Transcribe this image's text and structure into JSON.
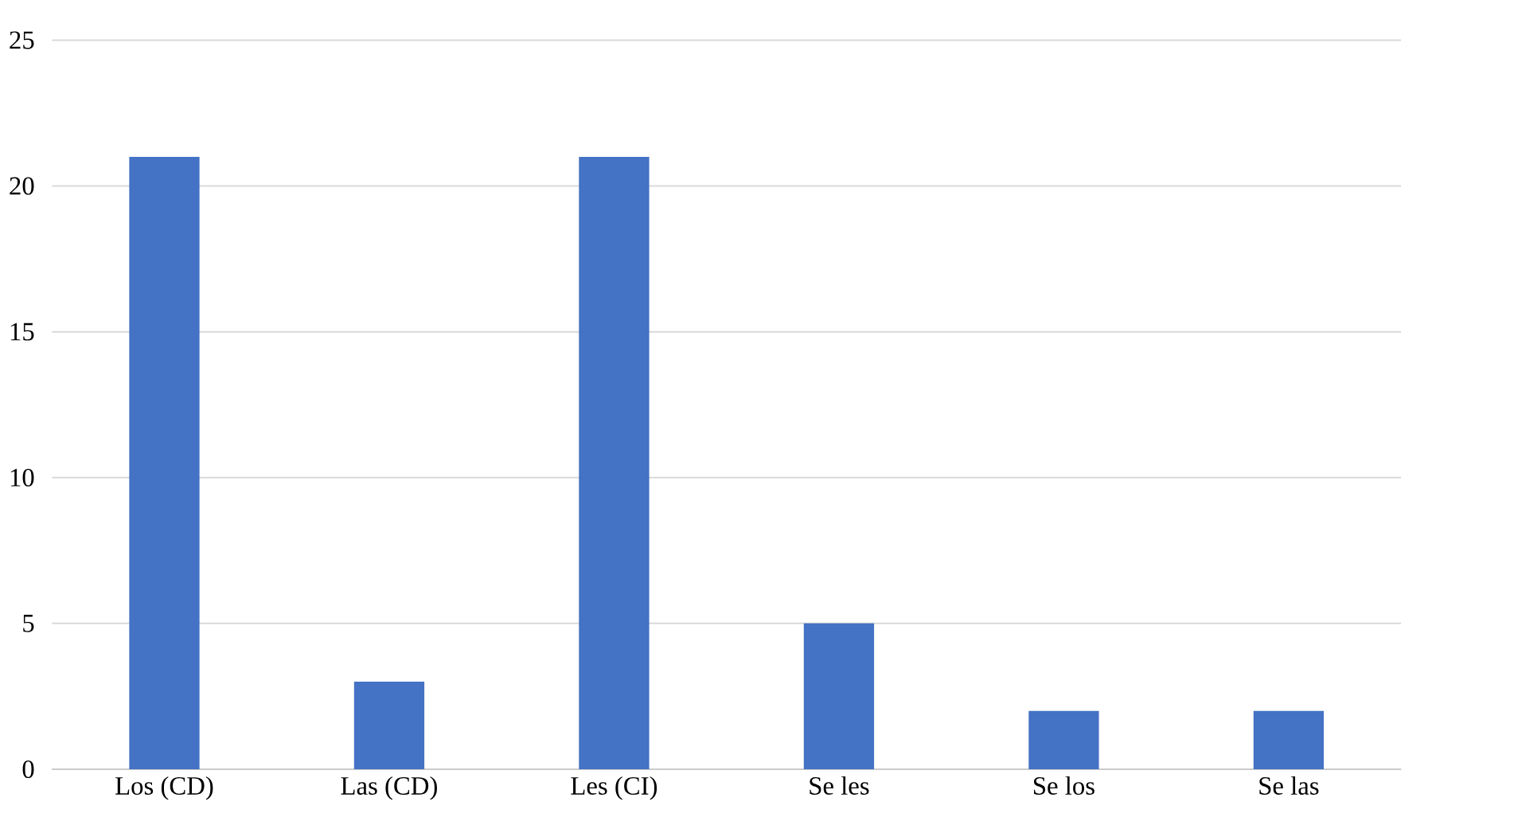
{
  "chart_data": {
    "type": "bar",
    "categories": [
      "Los (CD)",
      "Las (CD)",
      "Les (CI)",
      "Se les",
      "Se los",
      "Se las"
    ],
    "values": [
      21,
      3,
      21,
      5,
      2,
      2
    ],
    "color": "#4472c4",
    "ylim": [
      0,
      25
    ],
    "yticks": [
      0,
      5,
      10,
      15,
      20,
      25
    ],
    "grid": "y"
  }
}
